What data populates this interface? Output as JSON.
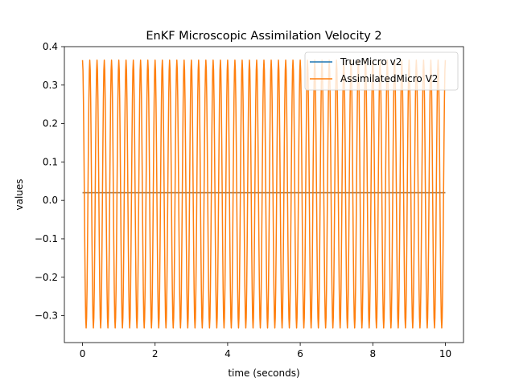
{
  "chart_data": {
    "type": "line",
    "title": "EnKF Microscopic Assimilation Velocity 2",
    "xlabel": "time (seconds)",
    "ylabel": "values",
    "xlim": [
      -0.5,
      10.5
    ],
    "ylim": [
      -0.37,
      0.4
    ],
    "xticks": [
      0,
      2,
      4,
      6,
      8,
      10
    ],
    "yticks": [
      -0.3,
      -0.2,
      -0.1,
      0.0,
      0.1,
      0.2,
      0.3,
      0.4
    ],
    "xtick_labels": [
      "0",
      "2",
      "4",
      "6",
      "8",
      "10"
    ],
    "ytick_labels": [
      "−0.3",
      "−0.2",
      "−0.1",
      "0.0",
      "0.1",
      "0.2",
      "0.3",
      "0.4"
    ],
    "grid": false,
    "legend_position": "top-right",
    "series": [
      {
        "name": "TrueMicro v2",
        "color": "#1f77b4",
        "x": [
          0,
          10
        ],
        "y": [
          0.02,
          0.02
        ]
      },
      {
        "name": "AssimilatedMicro V2",
        "color": "#ff7f0e",
        "oscillation": {
          "x_start": 0,
          "x_end": 10,
          "cycles": 50,
          "max": 0.365,
          "min": -0.332
        }
      }
    ]
  }
}
